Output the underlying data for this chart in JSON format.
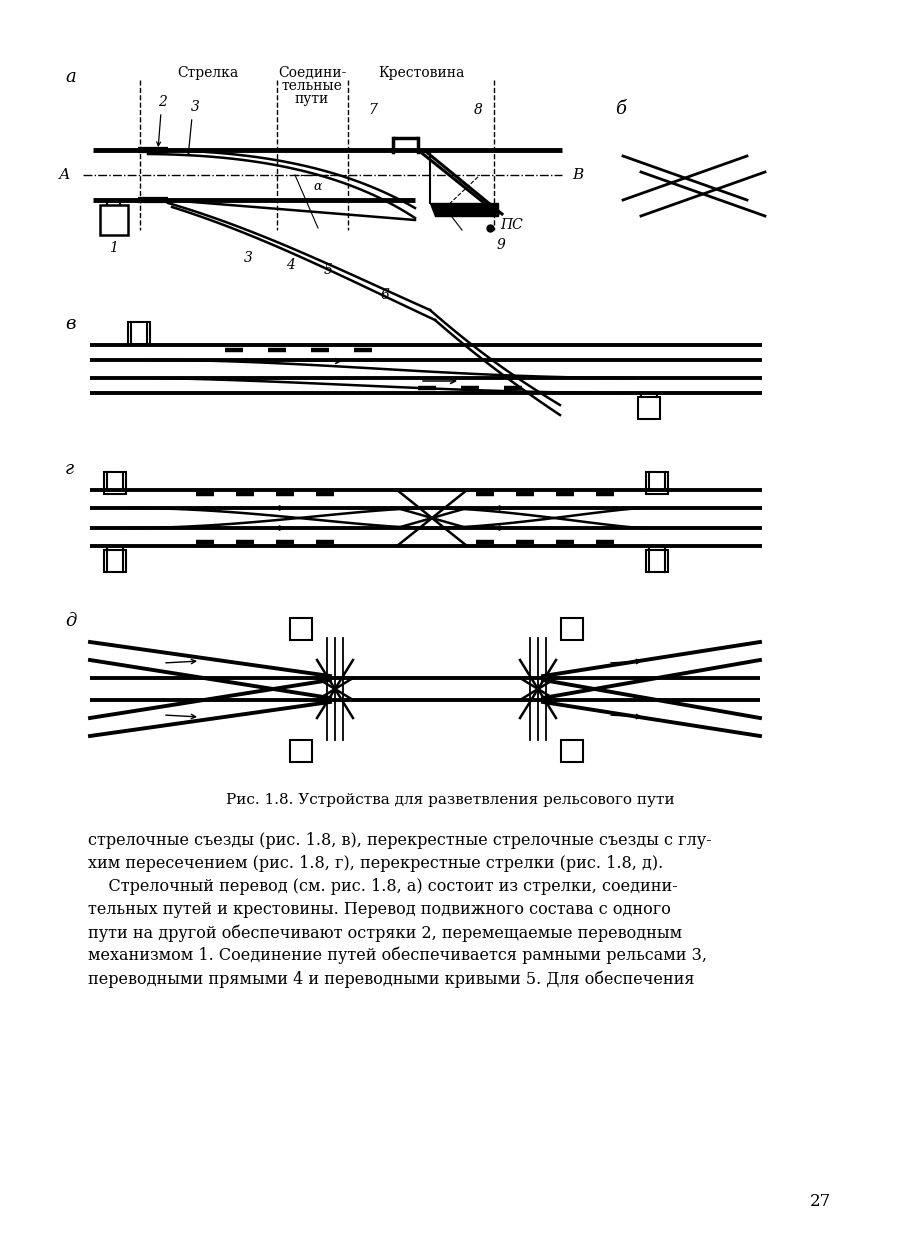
{
  "bg": "#ffffff",
  "lc": "#000000",
  "fig_caption": "Рис. 1.8. Устройства для разветвления рельсового пути",
  "body_lines": [
    "стрелочные съезды (рис. 1.8, в), перекрестные стрелочные съезды с глу-",
    "хим пересечением (рис. 1.8, г), перекрестные стрелки (рис. 1.8, д).",
    "    Стрелочный перевод (см. рис. 1.8, а) состоит из стрелки, соедини-",
    "тельных путей и крестовины. Перевод подвижного состава с одного",
    "пути на другой обеспечивают остряки 2, перемещаемые переводным",
    "механизмом 1. Соединение путей обеспечивается рамными рельсами 3,",
    "переводными прямыми 4 и переводными кривыми 5. Для обеспечения"
  ],
  "page_number": "27",
  "label_a": "а",
  "label_b": "б",
  "label_v": "в",
  "label_g": "г",
  "label_d": "д",
  "label_A": "А",
  "label_B": "В",
  "label_PS": "ПС",
  "label_9": "9",
  "strelka": "Стрелка",
  "soedini1": "Соедини-",
  "soedini2": "тельные",
  "soedini3": "пути",
  "krestovina": "Крестовина"
}
